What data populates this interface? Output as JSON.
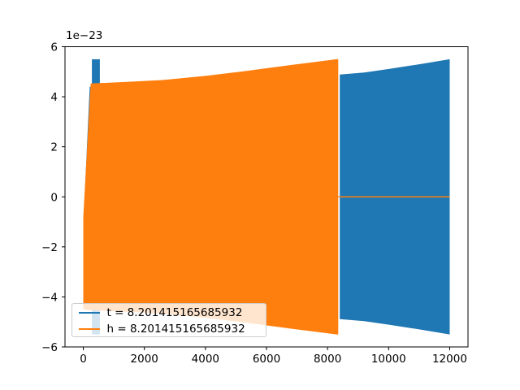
{
  "figure": {
    "background": "#ffffff",
    "spine_color": "#000000",
    "text_color": "#000000",
    "offset_label": "1e−23"
  },
  "chart_data": {
    "type": "line",
    "title": "",
    "xlabel": "",
    "ylabel": "",
    "grid": false,
    "y_offset_text": "1e−23",
    "xlim": [
      -600,
      12600
    ],
    "ylim_1e23": [
      -6,
      6
    ],
    "x_ticks": [
      {
        "label": "0",
        "value": 0
      },
      {
        "label": "2000",
        "value": 2000
      },
      {
        "label": "4000",
        "value": 4000
      },
      {
        "label": "6000",
        "value": 6000
      },
      {
        "label": "8000",
        "value": 8000
      },
      {
        "label": "10000",
        "value": 10000
      },
      {
        "label": "12000",
        "value": 12000
      }
    ],
    "y_ticks": [
      {
        "label": "6",
        "value": 6
      },
      {
        "label": "4",
        "value": 4
      },
      {
        "label": "2",
        "value": 2
      },
      {
        "label": "0",
        "value": 0
      },
      {
        "label": "−2",
        "value": -2
      },
      {
        "label": "−4",
        "value": -4
      },
      {
        "label": "−6",
        "value": -6
      }
    ],
    "legend_position": "lower-left",
    "legend_border_color": "#cccccc",
    "legend": [
      {
        "label": "t = 8.201415165685932",
        "color": "#1f77b4"
      },
      {
        "label": "h = 8.201415165685932",
        "color": "#ff7f0e"
      }
    ],
    "series": [
      {
        "name": "t",
        "color": "#1f77b4",
        "kind": "dense-oscillation-envelope",
        "spike": {
          "x_range": [
            280,
            540
          ],
          "amplitude_1e23": 5.5
        },
        "left_edge_sliver": {
          "x_from": 230,
          "y_from_1e23": 4.4,
          "x_to": 40,
          "y_to_1e23": -0.6
        },
        "envelope_x": [
          8400,
          9200,
          10050,
          11000,
          12000
        ],
        "envelope_amp_1e23": [
          4.89,
          4.97,
          5.12,
          5.3,
          5.5
        ],
        "left_close_points": []
      },
      {
        "name": "h",
        "color": "#ff7f0e",
        "kind": "dense-oscillation-envelope",
        "envelope_x": [
          240,
          1500,
          2600,
          3900,
          5250,
          6800,
          8350
        ],
        "envelope_amp_1e23": [
          4.53,
          4.6,
          4.67,
          4.82,
          5.02,
          5.27,
          5.51
        ],
        "left_close_points": [
          [
            0,
            -4.5
          ],
          [
            0,
            -0.8
          ]
        ],
        "zero_line": {
          "x_range": [
            8350,
            12000
          ],
          "y_1e23": 0
        }
      }
    ]
  }
}
